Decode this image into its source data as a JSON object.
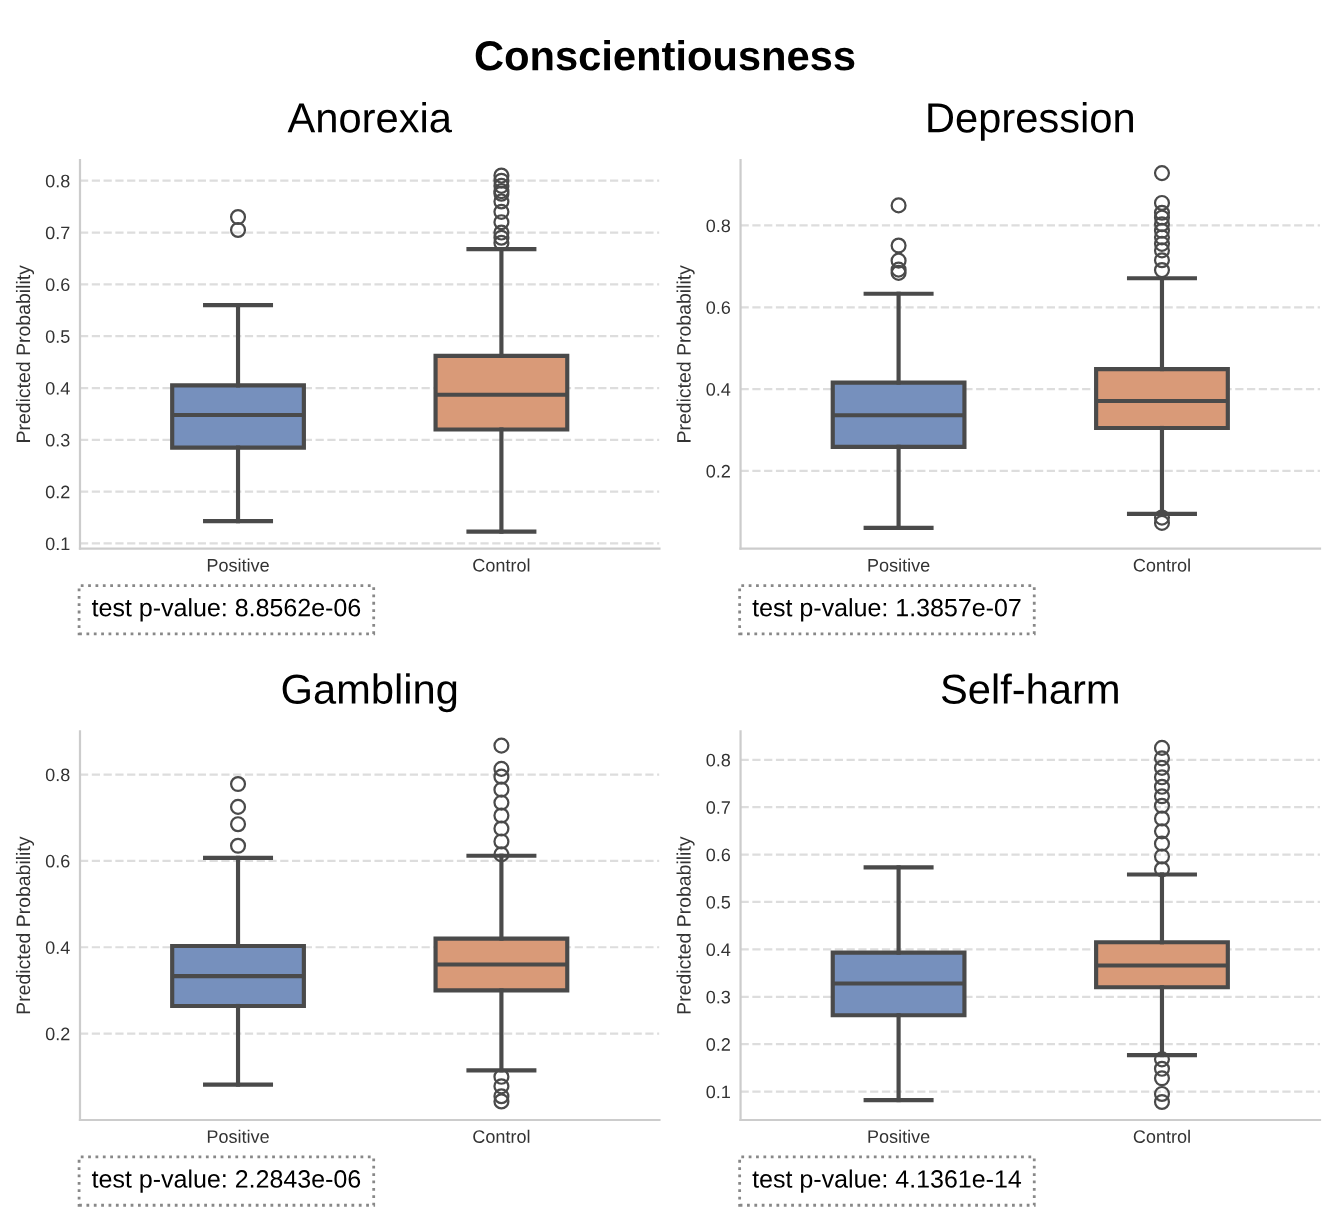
{
  "chart_data": [
    {
      "type": "box",
      "subtitle": "Conscientiousness",
      "title": "Anorexia",
      "ylabel": "Predicted Probability",
      "categories": [
        "Positive",
        "Control"
      ],
      "colors": [
        "#7690bd",
        "#d99a78"
      ],
      "ylim": [
        0.09,
        0.84
      ],
      "yticks": [
        0.1,
        0.2,
        0.3,
        0.4,
        0.5,
        0.6,
        0.7,
        0.8
      ],
      "grid": "y",
      "annotations": [
        "test p-value: 8.8562e-06"
      ],
      "boxes": [
        {
          "low": 0.143,
          "q1": 0.285,
          "median": 0.348,
          "q3": 0.405,
          "high": 0.56,
          "outliers": [
            0.705,
            0.73
          ]
        },
        {
          "low": 0.123,
          "q1": 0.32,
          "median": 0.387,
          "q3": 0.462,
          "high": 0.668,
          "outliers": [
            0.68,
            0.69,
            0.7,
            0.72,
            0.74,
            0.76,
            0.775,
            0.78,
            0.79,
            0.8,
            0.81
          ]
        }
      ]
    },
    {
      "type": "box",
      "title": "Depression",
      "ylabel": "Predicted Probability",
      "categories": [
        "Positive",
        "Control"
      ],
      "colors": [
        "#7690bd",
        "#d99a78"
      ],
      "ylim": [
        0.01,
        0.96
      ],
      "yticks": [
        0.2,
        0.4,
        0.6,
        0.8
      ],
      "grid": "y",
      "annotations": [
        "test p-value: 1.3857e-07"
      ],
      "boxes": [
        {
          "low": 0.061,
          "q1": 0.259,
          "median": 0.336,
          "q3": 0.416,
          "high": 0.633,
          "outliers": [
            0.684,
            0.692,
            0.714,
            0.751,
            0.849
          ]
        },
        {
          "low": 0.095,
          "q1": 0.305,
          "median": 0.371,
          "q3": 0.449,
          "high": 0.671,
          "outliers": [
            0.073,
            0.086,
            0.691,
            0.715,
            0.739,
            0.755,
            0.771,
            0.787,
            0.803,
            0.819,
            0.831,
            0.855,
            0.928
          ]
        }
      ]
    },
    {
      "type": "box",
      "title": "Gambling",
      "ylabel": "Predicted Probability",
      "categories": [
        "Positive",
        "Control"
      ],
      "colors": [
        "#7690bd",
        "#d99a78"
      ],
      "ylim": [
        0.0,
        0.9
      ],
      "yticks": [
        0.2,
        0.4,
        0.6,
        0.8
      ],
      "grid": "y",
      "annotations": [
        "test p-value: 2.2843e-06"
      ],
      "boxes": [
        {
          "low": 0.082,
          "q1": 0.264,
          "median": 0.333,
          "q3": 0.403,
          "high": 0.607,
          "outliers": [
            0.635,
            0.685,
            0.725,
            0.778
          ]
        },
        {
          "low": 0.115,
          "q1": 0.3,
          "median": 0.36,
          "q3": 0.42,
          "high": 0.612,
          "outliers": [
            0.043,
            0.055,
            0.078,
            0.1,
            0.615,
            0.645,
            0.675,
            0.705,
            0.735,
            0.765,
            0.795,
            0.813,
            0.867
          ]
        }
      ]
    },
    {
      "type": "box",
      "title": "Self-harm",
      "ylabel": "Predicted Probability",
      "categories": [
        "Positive",
        "Control"
      ],
      "colors": [
        "#7690bd",
        "#d99a78"
      ],
      "ylim": [
        0.04,
        0.86
      ],
      "yticks": [
        0.1,
        0.2,
        0.3,
        0.4,
        0.5,
        0.6,
        0.7,
        0.8
      ],
      "grid": "y",
      "annotations": [
        "test p-value: 4.1361e-14"
      ],
      "boxes": [
        {
          "low": 0.082,
          "q1": 0.261,
          "median": 0.328,
          "q3": 0.393,
          "high": 0.573
        },
        {
          "low": 0.177,
          "q1": 0.32,
          "median": 0.366,
          "q3": 0.415,
          "high": 0.558,
          "outliers": [
            0.078,
            0.095,
            0.128,
            0.148,
            0.168,
            0.569,
            0.596,
            0.623,
            0.649,
            0.676,
            0.703,
            0.723,
            0.743,
            0.763,
            0.783,
            0.803,
            0.825
          ]
        }
      ]
    }
  ]
}
